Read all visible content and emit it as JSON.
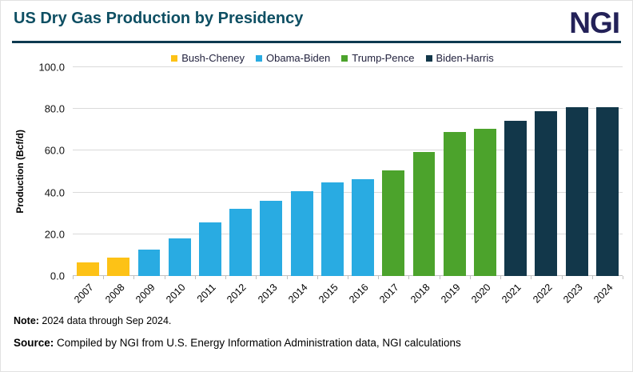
{
  "header": {
    "title": "US Dry Gas Production by Presidency",
    "logo": "NGI"
  },
  "chart_data": {
    "type": "bar",
    "title": "US Dry Gas Production by Presidency",
    "xlabel": "",
    "ylabel": "Production (Bcf/d)",
    "ylim": [
      0,
      100
    ],
    "yticks": [
      0,
      20,
      40,
      60,
      80,
      100
    ],
    "ytick_labels": [
      "0.0",
      "20.0",
      "40.0",
      "60.0",
      "80.0",
      "100.0"
    ],
    "grid": true,
    "legend_position": "top",
    "categories": [
      "2007",
      "2008",
      "2009",
      "2010",
      "2011",
      "2012",
      "2013",
      "2014",
      "2015",
      "2016",
      "2017",
      "2018",
      "2019",
      "2020",
      "2021",
      "2022",
      "2023",
      "2024"
    ],
    "series": [
      {
        "name": "Bush-Cheney",
        "color": "#FDC216",
        "years": [
          "2007",
          "2008"
        ],
        "values": [
          6.5,
          9.0
        ]
      },
      {
        "name": "Obama-Biden",
        "color": "#29ABE2",
        "years": [
          "2009",
          "2010",
          "2011",
          "2012",
          "2013",
          "2014",
          "2015",
          "2016"
        ],
        "values": [
          12.5,
          18.0,
          25.5,
          32.0,
          36.0,
          40.5,
          45.0,
          46.5
        ]
      },
      {
        "name": "Trump-Pence",
        "color": "#4CA32C",
        "years": [
          "2017",
          "2018",
          "2019",
          "2020"
        ],
        "values": [
          50.5,
          59.5,
          69.0,
          70.5
        ]
      },
      {
        "name": "Biden-Harris",
        "color": "#12374A",
        "years": [
          "2021",
          "2022",
          "2023",
          "2024"
        ],
        "values": [
          74.5,
          79.0,
          81.0,
          81.0
        ]
      }
    ]
  },
  "footer": {
    "note_label": "Note:",
    "note_text": " 2024 data through Sep 2024.",
    "source_label": "Source:",
    "source_text": " Compiled by NGI from U.S. Energy Information Administration data, NGI calculations"
  },
  "colors": {
    "title": "#0e4f63",
    "logo": "#232158",
    "divider": "#0e3a50",
    "gridline": "#dadada"
  }
}
